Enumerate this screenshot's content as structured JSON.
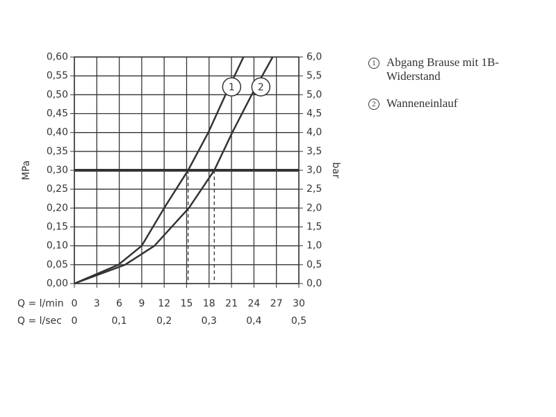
{
  "chart_data": {
    "type": "line",
    "xlabel": "Q = l/min",
    "x2label": "Q = l/sec",
    "ylabel": "MPa",
    "y2label": "bar",
    "xlim": [
      0,
      30
    ],
    "xticks": [
      0,
      3,
      6,
      9,
      12,
      15,
      18,
      21,
      24,
      27,
      30
    ],
    "x2lim": [
      0,
      0.5
    ],
    "x2ticks": [
      0,
      {
        "value": 0.1,
        "label": "0,1"
      },
      {
        "value": 0.2,
        "label": "0,2"
      },
      {
        "value": 0.3,
        "label": "0,3"
      },
      {
        "value": 0.4,
        "label": "0,4"
      },
      {
        "value": 0.5,
        "label": "0,5"
      }
    ],
    "ylim": [
      0,
      0.6
    ],
    "yticks": [
      {
        "value": 0,
        "label": "0,00"
      },
      {
        "value": 0.05,
        "label": "0,05"
      },
      {
        "value": 0.1,
        "label": "0,10"
      },
      {
        "value": 0.15,
        "label": "0,15"
      },
      {
        "value": 0.2,
        "label": "0,20"
      },
      {
        "value": 0.25,
        "label": "0,25"
      },
      {
        "value": 0.3,
        "label": "0,30"
      },
      {
        "value": 0.35,
        "label": "0,35"
      },
      {
        "value": 0.4,
        "label": "0,40"
      },
      {
        "value": 0.45,
        "label": "0,45"
      },
      {
        "value": 0.5,
        "label": "0,50"
      },
      {
        "value": 0.55,
        "label": "0,55"
      },
      {
        "value": 0.6,
        "label": "0,60"
      }
    ],
    "y2lim": [
      0,
      6
    ],
    "y2ticks": [
      {
        "value": 0,
        "label": "0,0"
      },
      {
        "value": 0.5,
        "label": "0,5"
      },
      {
        "value": 1,
        "label": "1,0"
      },
      {
        "value": 1.5,
        "label": "1,5"
      },
      {
        "value": 2,
        "label": "2,0"
      },
      {
        "value": 2.5,
        "label": "2,5"
      },
      {
        "value": 3,
        "label": "3,0"
      },
      {
        "value": 3.5,
        "label": "3,5"
      },
      {
        "value": 4,
        "label": "4,0"
      },
      {
        "value": 4.5,
        "label": "4,5"
      },
      {
        "value": 5,
        "label": "5,0"
      },
      {
        "value": 5.5,
        "label": "5,5"
      },
      {
        "value": 6,
        "label": "6,0"
      }
    ],
    "grid": true,
    "color": "#333333",
    "reference_y": 0.3,
    "drop_x": [
      15.2,
      18.7
    ],
    "series": [
      {
        "name": "Abgang Brause mit 1B-Widerstand",
        "label": "1",
        "x": [
          0,
          5.9,
          9.0,
          12.0,
          15.2,
          17.9,
          20.2,
          22.6
        ],
        "values": [
          0,
          0.05,
          0.1,
          0.2,
          0.3,
          0.4,
          0.5,
          0.6
        ]
      },
      {
        "name": "Wanneneinlauf",
        "label": "2",
        "x": [
          0,
          6.8,
          10.7,
          15.3,
          18.7,
          21.1,
          23.7,
          26.5
        ],
        "values": [
          0,
          0.05,
          0.1,
          0.2,
          0.3,
          0.4,
          0.5,
          0.6
        ]
      }
    ]
  }
}
